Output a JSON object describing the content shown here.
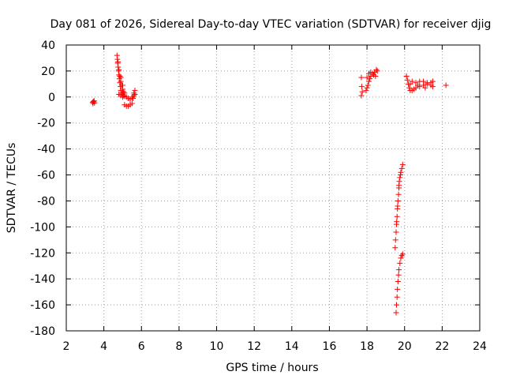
{
  "chart_data": {
    "type": "scatter",
    "title": "Day 081 of 2026, Sidereal Day-to-day VTEC variation (SDTVAR) for receiver djig",
    "xlabel": "GPS time / hours",
    "ylabel": "SDTVAR / TECUs",
    "xlim": [
      2,
      24
    ],
    "ylim": [
      -180,
      40
    ],
    "xticks": [
      2,
      4,
      6,
      8,
      10,
      12,
      14,
      16,
      18,
      20,
      22,
      24
    ],
    "yticks": [
      -180,
      -160,
      -140,
      -120,
      -100,
      -80,
      -60,
      -40,
      -20,
      0,
      20,
      40
    ],
    "grid": true,
    "marker": "+",
    "color": "#ff0000",
    "clusters": [
      {
        "name": "cluster-3.4h",
        "points": [
          [
            3.4,
            -4
          ],
          [
            3.45,
            -3.5
          ],
          [
            3.5,
            -4.5
          ],
          [
            3.42,
            -5
          ],
          [
            3.48,
            -3
          ]
        ]
      },
      {
        "name": "cluster-4.7-5.7h",
        "points": [
          [
            4.7,
            32
          ],
          [
            4.72,
            29
          ],
          [
            4.74,
            26
          ],
          [
            4.76,
            23
          ],
          [
            4.78,
            20
          ],
          [
            4.8,
            17
          ],
          [
            4.82,
            14
          ],
          [
            4.85,
            11
          ],
          [
            4.88,
            8
          ],
          [
            4.9,
            5
          ],
          [
            4.95,
            3
          ],
          [
            5.0,
            2
          ],
          [
            5.05,
            1
          ],
          [
            5.1,
            0.5
          ],
          [
            5.2,
            0
          ],
          [
            5.3,
            -1
          ],
          [
            5.4,
            -2
          ],
          [
            5.5,
            0
          ],
          [
            5.6,
            3
          ],
          [
            5.65,
            5
          ],
          [
            5.55,
            -1
          ],
          [
            5.1,
            -6
          ],
          [
            5.2,
            -7
          ],
          [
            5.3,
            -7
          ],
          [
            5.4,
            -6
          ],
          [
            5.5,
            -5
          ],
          [
            4.75,
            27
          ],
          [
            4.8,
            21
          ],
          [
            4.85,
            16
          ],
          [
            4.9,
            12
          ],
          [
            4.95,
            9
          ],
          [
            5.0,
            6
          ],
          [
            5.05,
            4
          ],
          [
            5.1,
            3
          ],
          [
            4.8,
            2
          ],
          [
            4.9,
            1
          ],
          [
            5.0,
            0
          ],
          [
            5.6,
            1
          ],
          [
            5.65,
            2
          ],
          [
            5.0,
            9
          ],
          [
            4.9,
            15
          ]
        ]
      },
      {
        "name": "cluster-17.7-18.6h",
        "points": [
          [
            17.7,
            15
          ],
          [
            17.72,
            8
          ],
          [
            17.75,
            4
          ],
          [
            17.7,
            1
          ],
          [
            17.95,
            5
          ],
          [
            18.0,
            7
          ],
          [
            18.05,
            9
          ],
          [
            18.1,
            12
          ],
          [
            18.15,
            14
          ],
          [
            18.2,
            16
          ],
          [
            18.3,
            18
          ],
          [
            18.4,
            19
          ],
          [
            18.5,
            21
          ],
          [
            18.55,
            20
          ],
          [
            18.0,
            15
          ],
          [
            18.1,
            18
          ],
          [
            18.2,
            19
          ],
          [
            18.35,
            17
          ],
          [
            18.45,
            16
          ]
        ]
      },
      {
        "name": "cluster-19.5-20h-upper",
        "points": [
          [
            19.5,
            -116
          ],
          [
            19.52,
            -110
          ],
          [
            19.55,
            -104
          ],
          [
            19.57,
            -98
          ],
          [
            19.6,
            -92
          ],
          [
            19.62,
            -86
          ],
          [
            19.65,
            -80
          ],
          [
            19.68,
            -75
          ],
          [
            19.7,
            -70
          ],
          [
            19.72,
            -65
          ],
          [
            19.75,
            -62
          ],
          [
            19.8,
            -58
          ],
          [
            19.85,
            -55
          ],
          [
            19.9,
            -52
          ],
          [
            19.58,
            -96
          ],
          [
            19.63,
            -84
          ],
          [
            19.7,
            -68
          ],
          [
            19.78,
            -60
          ]
        ]
      },
      {
        "name": "cluster-19.5-20h-lower",
        "points": [
          [
            19.55,
            -166
          ],
          [
            19.57,
            -160
          ],
          [
            19.6,
            -154
          ],
          [
            19.62,
            -148
          ],
          [
            19.65,
            -142
          ],
          [
            19.68,
            -137
          ],
          [
            19.7,
            -133
          ],
          [
            19.75,
            -128
          ],
          [
            19.8,
            -124
          ],
          [
            19.85,
            -122
          ],
          [
            19.9,
            -121
          ]
        ]
      },
      {
        "name": "cluster-20.1-22.2h",
        "points": [
          [
            20.1,
            16
          ],
          [
            20.15,
            13
          ],
          [
            20.2,
            10
          ],
          [
            20.25,
            7
          ],
          [
            20.3,
            5
          ],
          [
            20.4,
            5
          ],
          [
            20.5,
            6
          ],
          [
            20.6,
            7
          ],
          [
            20.8,
            8
          ],
          [
            21.0,
            9
          ],
          [
            21.2,
            10
          ],
          [
            21.4,
            11
          ],
          [
            21.5,
            12
          ],
          [
            20.4,
            12
          ],
          [
            20.6,
            11
          ],
          [
            20.8,
            12
          ],
          [
            21.0,
            12
          ],
          [
            21.2,
            11
          ],
          [
            21.4,
            9
          ],
          [
            21.5,
            8
          ],
          [
            20.3,
            10
          ],
          [
            20.7,
            9
          ],
          [
            21.1,
            7
          ],
          [
            22.2,
            9
          ]
        ]
      }
    ]
  }
}
